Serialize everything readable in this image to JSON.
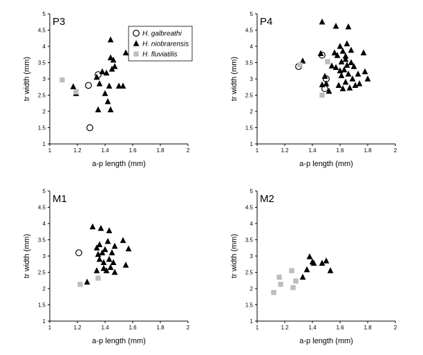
{
  "chart_data": [
    {
      "type": "scatter",
      "title": "P3",
      "xlabel": "a-p length (mm)",
      "ylabel": "tr width (mm)",
      "xlim": [
        1,
        2
      ],
      "ylim": [
        1,
        5
      ],
      "xticks": [
        "1",
        "1.2",
        "1.4",
        "1.6",
        "1.8",
        "2"
      ],
      "yticks": [
        "1",
        "1.5",
        "2",
        "2.5",
        "3",
        "3.5",
        "4",
        "4.5",
        "5"
      ],
      "legend_position": "top-right",
      "series": [
        {
          "name": "H. galbreathi",
          "marker": "circle",
          "points": [
            [
              1.35,
              3.13
            ],
            [
              1.28,
              2.8
            ],
            [
              1.29,
              1.5
            ]
          ]
        },
        {
          "name": "H. niobrarensis",
          "marker": "triangle",
          "points": [
            [
              1.17,
              2.76
            ],
            [
              1.19,
              2.55
            ],
            [
              1.34,
              3.05
            ],
            [
              1.36,
              2.85
            ],
            [
              1.38,
              3.22
            ],
            [
              1.4,
              2.55
            ],
            [
              1.41,
              3.18
            ],
            [
              1.42,
              2.3
            ],
            [
              1.43,
              2.78
            ],
            [
              1.44,
              3.65
            ],
            [
              1.44,
              4.2
            ],
            [
              1.45,
              3.3
            ],
            [
              1.46,
              3.58
            ],
            [
              1.47,
              3.38
            ],
            [
              1.5,
              2.78
            ],
            [
              1.53,
              2.78
            ],
            [
              1.55,
              3.8
            ],
            [
              1.35,
              2.05
            ],
            [
              1.44,
              2.05
            ]
          ]
        },
        {
          "name": "H. fluviatilis",
          "marker": "square",
          "points": [
            [
              1.09,
              2.97
            ],
            [
              1.19,
              2.6
            ]
          ]
        }
      ]
    },
    {
      "type": "scatter",
      "title": "P4",
      "xlabel": "a-p length (mm)",
      "ylabel": "tr width (mm)",
      "xlim": [
        1,
        2
      ],
      "ylim": [
        1,
        5
      ],
      "xticks": [
        "1",
        "1.2",
        "1.4",
        "1.6",
        "1.8",
        "2"
      ],
      "yticks": [
        "1",
        "1.5",
        "2",
        "2.5",
        "3",
        "3.5",
        "4",
        "4.5",
        "5"
      ],
      "series": [
        {
          "name": "H. galbreathi",
          "marker": "circle",
          "points": [
            [
              1.3,
              3.38
            ],
            [
              1.47,
              3.73
            ],
            [
              1.5,
              3.0
            ],
            [
              1.49,
              2.7
            ]
          ]
        },
        {
          "name": "H. niobrarensis",
          "marker": "triangle",
          "points": [
            [
              1.33,
              3.55
            ],
            [
              1.46,
              3.78
            ],
            [
              1.47,
              4.75
            ],
            [
              1.47,
              2.82
            ],
            [
              1.49,
              3.08
            ],
            [
              1.5,
              2.85
            ],
            [
              1.52,
              2.62
            ],
            [
              1.54,
              3.4
            ],
            [
              1.56,
              3.8
            ],
            [
              1.57,
              4.62
            ],
            [
              1.57,
              3.35
            ],
            [
              1.58,
              3.72
            ],
            [
              1.59,
              2.8
            ],
            [
              1.6,
              4.0
            ],
            [
              1.61,
              3.52
            ],
            [
              1.61,
              3.1
            ],
            [
              1.62,
              2.7
            ],
            [
              1.62,
              3.85
            ],
            [
              1.63,
              3.28
            ],
            [
              1.64,
              3.6
            ],
            [
              1.64,
              2.9
            ],
            [
              1.65,
              4.08
            ],
            [
              1.65,
              3.42
            ],
            [
              1.66,
              4.6
            ],
            [
              1.66,
              3.15
            ],
            [
              1.67,
              2.72
            ],
            [
              1.68,
              3.88
            ],
            [
              1.68,
              3.5
            ],
            [
              1.69,
              3.0
            ],
            [
              1.7,
              3.38
            ],
            [
              1.71,
              2.8
            ],
            [
              1.73,
              3.15
            ],
            [
              1.74,
              2.85
            ],
            [
              1.77,
              3.8
            ],
            [
              1.78,
              3.22
            ],
            [
              1.8,
              3.0
            ],
            [
              1.64,
              3.7
            ],
            [
              1.6,
              3.25
            ]
          ]
        },
        {
          "name": "H. fluviatilis",
          "marker": "square",
          "points": [
            [
              1.31,
              3.43
            ],
            [
              1.47,
              2.5
            ],
            [
              1.51,
              3.53
            ]
          ]
        }
      ]
    },
    {
      "type": "scatter",
      "title": "M1",
      "xlabel": "a-p length (mm)",
      "ylabel": "tr width (mm)",
      "xlim": [
        1,
        2
      ],
      "ylim": [
        1,
        5
      ],
      "xticks": [
        "1",
        "1.2",
        "1.4",
        "1.6",
        "1.8",
        "2"
      ],
      "yticks": [
        "1",
        "1.5",
        "2",
        "2.5",
        "3",
        "3.5",
        "4",
        "4.5",
        "5"
      ],
      "series": [
        {
          "name": "H. galbreathi",
          "marker": "circle",
          "points": [
            [
              1.21,
              3.1
            ]
          ]
        },
        {
          "name": "H. niobrarensis",
          "marker": "triangle",
          "points": [
            [
              1.27,
              2.2
            ],
            [
              1.31,
              3.9
            ],
            [
              1.34,
              3.25
            ],
            [
              1.34,
              2.55
            ],
            [
              1.35,
              3.05
            ],
            [
              1.36,
              3.35
            ],
            [
              1.36,
              2.9
            ],
            [
              1.37,
              3.85
            ],
            [
              1.38,
              3.1
            ],
            [
              1.39,
              2.8
            ],
            [
              1.39,
              2.62
            ],
            [
              1.4,
              3.2
            ],
            [
              1.41,
              2.55
            ],
            [
              1.42,
              3.45
            ],
            [
              1.43,
              2.9
            ],
            [
              1.43,
              3.78
            ],
            [
              1.44,
              2.65
            ],
            [
              1.45,
              3.1
            ],
            [
              1.46,
              2.8
            ],
            [
              1.47,
              3.3
            ],
            [
              1.47,
              2.5
            ],
            [
              1.53,
              3.48
            ],
            [
              1.55,
              2.72
            ],
            [
              1.57,
              3.22
            ]
          ]
        },
        {
          "name": "H. fluviatilis",
          "marker": "square",
          "points": [
            [
              1.22,
              2.13
            ],
            [
              1.35,
              2.32
            ]
          ]
        }
      ]
    },
    {
      "type": "scatter",
      "title": "M2",
      "xlabel": "a-p length (mm)",
      "ylabel": "tr width (mm)",
      "xlim": [
        1,
        2
      ],
      "ylim": [
        1,
        5
      ],
      "xticks": [
        "1",
        "1.2",
        "1.4",
        "1.6",
        "1.8",
        "2"
      ],
      "yticks": [
        "1",
        "1.5",
        "2",
        "2.5",
        "3",
        "3.5",
        "4",
        "4.5",
        "5"
      ],
      "series": [
        {
          "name": "H. niobrarensis",
          "marker": "triangle",
          "points": [
            [
              1.33,
              2.35
            ],
            [
              1.36,
              2.58
            ],
            [
              1.38,
              2.98
            ],
            [
              1.4,
              2.82
            ],
            [
              1.41,
              2.78
            ],
            [
              1.47,
              2.78
            ],
            [
              1.5,
              2.85
            ],
            [
              1.53,
              2.55
            ]
          ]
        },
        {
          "name": "H. fluviatilis",
          "marker": "square",
          "points": [
            [
              1.12,
              1.88
            ],
            [
              1.16,
              2.35
            ],
            [
              1.17,
              2.13
            ],
            [
              1.25,
              2.55
            ],
            [
              1.26,
              2.03
            ],
            [
              1.28,
              2.23
            ]
          ]
        }
      ]
    }
  ]
}
